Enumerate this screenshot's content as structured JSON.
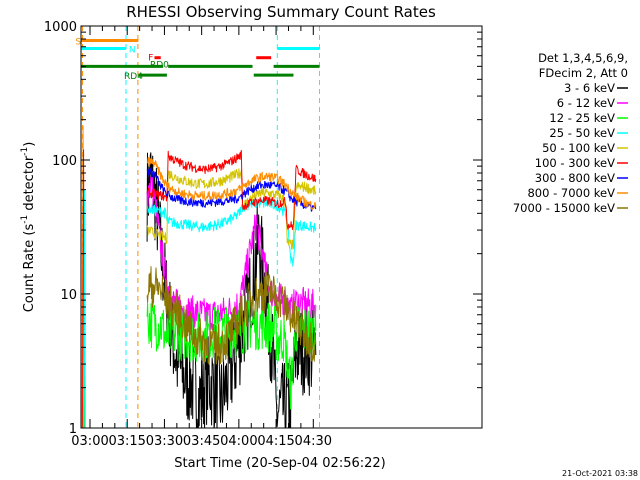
{
  "chart_data": {
    "type": "line",
    "title": "RHESSI Observing Summary Count Rates",
    "xlabel": "Start Time (20-Sep-04 02:56:22)",
    "ylabel_main": "Count Rate (s",
    "ylabel_sup1": "-1",
    "ylabel_mid": " detector",
    "ylabel_sup2": "-1",
    "ylabel_end": ")",
    "footer": "21-Oct-2021 03:38",
    "x_range_min": [
      56.37,
      218
    ],
    "ylim": [
      1,
      1000
    ],
    "y_scale": "log",
    "x_ticks": [
      {
        "v": 60,
        "label": "03:00"
      },
      {
        "v": 75,
        "label": "03:15"
      },
      {
        "v": 90,
        "label": "03:30"
      },
      {
        "v": 105,
        "label": "03:45"
      },
      {
        "v": 120,
        "label": "04:00"
      },
      {
        "v": 135,
        "label": "04:15"
      },
      {
        "v": 150,
        "label": "04:30"
      }
    ],
    "y_ticks": [
      {
        "v": 1,
        "label": "1"
      },
      {
        "v": 10,
        "label": "10"
      },
      {
        "v": 100,
        "label": "100"
      },
      {
        "v": 1000,
        "label": "1000"
      }
    ],
    "legend": {
      "placement": "right",
      "header": [
        "Det 1,3,4,5,6,9,",
        "FDecim 2, Att 0"
      ],
      "entries": [
        {
          "name": "3 - 6 keV",
          "color": "#000000"
        },
        {
          "name": "6 - 12 keV",
          "color": "#ff00ff"
        },
        {
          "name": "12 - 25 keV",
          "color": "#00ff00"
        },
        {
          "name": "25 - 50 keV",
          "color": "#00ffff"
        },
        {
          "name": "50 - 100 keV",
          "color": "#d4c400"
        },
        {
          "name": "100 - 300 keV",
          "color": "#ff0000"
        },
        {
          "name": "300 - 800 keV",
          "color": "#0000ff"
        },
        {
          "name": "800 - 7000 keV",
          "color": "#ff8c00"
        },
        {
          "name": "7000 - 15000 keV",
          "color": "#8b7500"
        }
      ]
    },
    "flag_bars": [
      {
        "label": "S",
        "color": "#ff8c00",
        "y": 780,
        "segments": [
          [
            56.5,
            79.5
          ]
        ]
      },
      {
        "label": "N",
        "color": "#00ffff",
        "y": 680,
        "segments": [
          [
            56.5,
            74.5
          ],
          [
            135.5,
            152.5
          ]
        ]
      },
      {
        "label": "F",
        "color": "#ff0000",
        "y": 580,
        "segments": [
          [
            86,
            88.5
          ],
          [
            127,
            133
          ]
        ]
      },
      {
        "label": "RD0",
        "color": "#008000",
        "y": 500,
        "segments": [
          [
            56.5,
            89.5
          ],
          [
            91.5,
            125.5
          ],
          [
            134,
            152.5
          ]
        ]
      },
      {
        "label": "RD4",
        "color": "#008000",
        "y": 430,
        "segments": [
          [
            79.5,
            91
          ],
          [
            126,
            142
          ]
        ]
      }
    ],
    "vlines": [
      {
        "x": 57.0,
        "color": "#ff8c00"
      },
      {
        "x": 74.5,
        "color": "#00ffff"
      },
      {
        "x": 79.3,
        "color": "#ff8c00"
      },
      {
        "x": 135.5,
        "color": "#00ffff"
      },
      {
        "x": 152.5,
        "color": "#00ffff"
      }
    ],
    "series": [
      {
        "name": "3 - 6 keV",
        "color": "#000000",
        "noise": 0.35,
        "points": [
          [
            83,
            55
          ],
          [
            84.5,
            75
          ],
          [
            86,
            55
          ],
          [
            87.5,
            35
          ],
          [
            89,
            18
          ],
          [
            91,
            9
          ],
          [
            93,
            5
          ],
          [
            95,
            3.2
          ],
          [
            98,
            2.4
          ],
          [
            101,
            2.2
          ],
          [
            104,
            1.6
          ],
          [
            107,
            2.3
          ],
          [
            110,
            2.1
          ],
          [
            113,
            1.6
          ],
          [
            116,
            2.4
          ],
          [
            119,
            3.5
          ],
          [
            122,
            6
          ],
          [
            125,
            11
          ],
          [
            127,
            19
          ],
          [
            128,
            25
          ],
          [
            130,
            14
          ],
          [
            132,
            7
          ],
          [
            134,
            3
          ],
          [
            135,
            1.3
          ],
          [
            141,
            1.5
          ],
          [
            143,
            3.8
          ],
          [
            147,
            4
          ],
          [
            151,
            3.5
          ]
        ]
      },
      {
        "name": "6 - 12 keV",
        "color": "#ff00ff",
        "noise": 0.12,
        "points": [
          [
            83,
            55
          ],
          [
            84.5,
            70
          ],
          [
            86,
            50
          ],
          [
            87.5,
            32
          ],
          [
            89,
            20
          ],
          [
            91,
            12
          ],
          [
            93,
            9
          ],
          [
            96,
            8
          ],
          [
            100,
            7.5
          ],
          [
            104,
            7.2
          ],
          [
            108,
            7.0
          ],
          [
            112,
            7.2
          ],
          [
            116,
            7.5
          ],
          [
            120,
            8.5
          ],
          [
            122,
            12
          ],
          [
            124,
            19
          ],
          [
            126,
            28
          ],
          [
            127,
            34
          ],
          [
            129,
            22
          ],
          [
            131,
            14
          ],
          [
            133,
            10.5
          ],
          [
            135,
            9.2
          ],
          [
            138,
            9
          ],
          [
            141,
            7.5
          ],
          [
            143,
            8.8
          ],
          [
            147,
            8.4
          ],
          [
            151,
            8.2
          ]
        ]
      },
      {
        "name": "12 - 25 keV",
        "color": "#00ff00",
        "noise": 0.2,
        "points": [
          [
            83,
            6.5
          ],
          [
            86,
            6
          ],
          [
            89,
            5.8
          ],
          [
            91,
            4.6
          ],
          [
            93,
            5.1
          ],
          [
            97,
            5
          ],
          [
            101,
            4.9
          ],
          [
            105,
            4.6
          ],
          [
            109,
            5.2
          ],
          [
            113,
            5.0
          ],
          [
            117,
            5.3
          ],
          [
            121,
            5.5
          ],
          [
            125,
            6
          ],
          [
            130,
            6
          ],
          [
            134,
            5.5
          ],
          [
            136,
            4.5
          ],
          [
            138,
            4.8
          ],
          [
            141,
            2
          ],
          [
            143,
            5.5
          ],
          [
            147,
            5.3
          ],
          [
            151,
            5.3
          ]
        ]
      },
      {
        "name": "25 - 50 keV",
        "color": "#00ffff",
        "noise": 0.04,
        "points": [
          [
            83,
            44
          ],
          [
            86,
            42
          ],
          [
            89,
            41
          ],
          [
            90.5,
            40
          ],
          [
            91,
            35
          ],
          [
            94,
            34
          ],
          [
            98,
            33
          ],
          [
            102,
            32
          ],
          [
            106,
            31.5
          ],
          [
            110,
            32.5
          ],
          [
            114,
            34
          ],
          [
            118,
            37
          ],
          [
            120,
            40
          ],
          [
            121,
            43
          ],
          [
            121.5,
            45
          ],
          [
            125,
            47
          ],
          [
            128,
            48
          ],
          [
            132,
            47
          ],
          [
            135,
            46
          ],
          [
            137,
            44
          ],
          [
            139,
            39
          ],
          [
            141,
            18
          ],
          [
            142,
            17.5
          ],
          [
            143,
            33
          ],
          [
            147,
            32
          ],
          [
            151,
            31
          ]
        ]
      },
      {
        "name": "50 - 100 keV",
        "color": "#d4c400",
        "noise": 0.04,
        "points": [
          [
            83,
            30
          ],
          [
            85,
            29
          ],
          [
            87,
            28
          ],
          [
            89,
            27
          ],
          [
            91,
            26
          ],
          [
            91.5,
            80
          ],
          [
            94,
            75
          ],
          [
            98,
            70
          ],
          [
            102,
            67
          ],
          [
            106,
            66
          ],
          [
            110,
            68
          ],
          [
            114,
            71
          ],
          [
            118,
            76
          ],
          [
            121,
            81
          ],
          [
            121.5,
            45
          ],
          [
            125,
            52
          ],
          [
            129,
            57
          ],
          [
            133,
            56
          ],
          [
            136,
            54
          ],
          [
            138,
            51
          ],
          [
            139,
            46
          ],
          [
            139.5,
            24
          ],
          [
            142,
            23
          ],
          [
            143,
            63
          ],
          [
            147,
            63
          ],
          [
            151,
            58
          ]
        ]
      },
      {
        "name": "100 - 300 keV",
        "color": "#ff0000",
        "noise": 0.035,
        "points": [
          [
            83,
            57
          ],
          [
            86,
            56
          ],
          [
            89,
            54
          ],
          [
            91,
            52
          ],
          [
            91.5,
            108
          ],
          [
            94,
            100
          ],
          [
            98,
            92
          ],
          [
            102,
            88
          ],
          [
            106,
            85
          ],
          [
            110,
            87
          ],
          [
            114,
            92
          ],
          [
            118,
            100
          ],
          [
            121,
            110
          ],
          [
            121.5,
            45
          ],
          [
            125,
            48
          ],
          [
            129,
            50
          ],
          [
            133,
            49
          ],
          [
            136,
            47
          ],
          [
            138,
            49
          ],
          [
            139,
            48
          ],
          [
            139.5,
            33
          ],
          [
            142,
            32
          ],
          [
            143,
            85
          ],
          [
            147,
            78
          ],
          [
            151,
            72
          ]
        ]
      },
      {
        "name": "300 - 800 keV",
        "color": "#0000ff",
        "noise": 0.035,
        "points": [
          [
            83,
            82
          ],
          [
            86,
            80
          ],
          [
            88,
            66
          ],
          [
            90,
            58
          ],
          [
            92,
            54
          ],
          [
            96,
            50
          ],
          [
            100,
            49
          ],
          [
            104,
            48
          ],
          [
            108,
            48
          ],
          [
            112,
            49
          ],
          [
            116,
            50
          ],
          [
            120,
            52
          ],
          [
            122,
            56
          ],
          [
            125,
            61
          ],
          [
            129,
            65
          ],
          [
            133,
            65
          ],
          [
            136,
            63
          ],
          [
            139,
            58
          ],
          [
            141,
            52
          ],
          [
            144,
            48
          ],
          [
            148,
            45
          ],
          [
            151,
            43
          ]
        ]
      },
      {
        "name": "800 - 7000 keV",
        "color": "#ff8c00",
        "noise": 0.035,
        "points": [
          [
            83,
            98
          ],
          [
            86,
            95
          ],
          [
            88,
            80
          ],
          [
            90,
            68
          ],
          [
            92,
            62
          ],
          [
            96,
            57
          ],
          [
            100,
            55
          ],
          [
            104,
            54
          ],
          [
            108,
            54
          ],
          [
            112,
            55
          ],
          [
            116,
            57
          ],
          [
            120,
            60
          ],
          [
            122,
            64
          ],
          [
            125,
            70
          ],
          [
            129,
            75
          ],
          [
            133,
            75
          ],
          [
            136,
            72
          ],
          [
            139,
            65
          ],
          [
            141,
            58
          ],
          [
            144,
            52
          ],
          [
            148,
            47
          ],
          [
            151,
            45
          ]
        ]
      },
      {
        "name": "7000 - 15000 keV",
        "color": "#8b7500",
        "noise": 0.16,
        "points": [
          [
            83,
            11
          ],
          [
            85,
            11.5
          ],
          [
            87,
            11.2
          ],
          [
            89,
            10.5
          ],
          [
            91,
            9
          ],
          [
            93,
            8
          ],
          [
            96,
            7
          ],
          [
            100,
            5.5
          ],
          [
            104,
            4.6
          ],
          [
            108,
            4.2
          ],
          [
            112,
            4.2
          ],
          [
            116,
            4.8
          ],
          [
            119,
            6
          ],
          [
            122,
            7.5
          ],
          [
            125,
            9
          ],
          [
            128,
            10
          ],
          [
            131,
            10.5
          ],
          [
            134,
            10
          ],
          [
            137,
            9.2
          ],
          [
            140,
            7.5
          ],
          [
            143,
            6.2
          ],
          [
            146,
            5.2
          ],
          [
            149,
            4.6
          ],
          [
            151,
            4.2
          ]
        ]
      }
    ]
  }
}
